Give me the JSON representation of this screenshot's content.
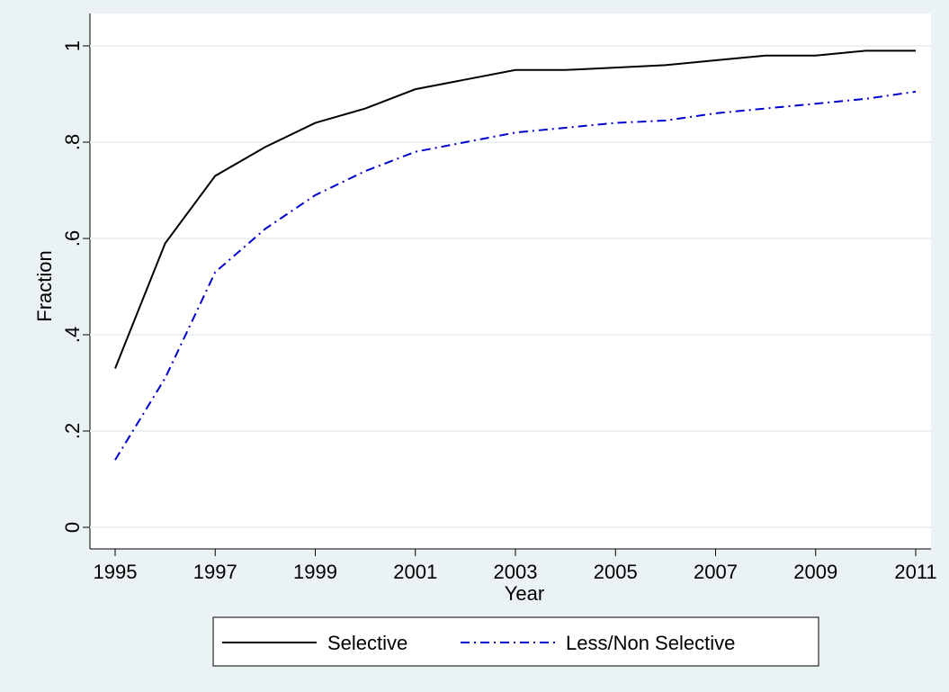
{
  "chart_data": {
    "type": "line",
    "x_label": "Year",
    "y_label": "Fraction",
    "x": [
      1995,
      1996,
      1997,
      1998,
      1999,
      2000,
      2001,
      2002,
      2003,
      2004,
      2005,
      2006,
      2007,
      2008,
      2009,
      2010,
      2011
    ],
    "series": [
      {
        "name": "Selective",
        "color": "#000000",
        "dash": "solid",
        "values": [
          0.33,
          0.59,
          0.73,
          0.79,
          0.84,
          0.87,
          0.91,
          0.93,
          0.95,
          0.95,
          0.955,
          0.96,
          0.97,
          0.98,
          0.98,
          0.99,
          0.99
        ]
      },
      {
        "name": "Less/Non Selective",
        "color": "#0000cc",
        "dash": "dashdot",
        "values": [
          0.14,
          0.31,
          0.53,
          0.62,
          0.69,
          0.74,
          0.78,
          0.8,
          0.82,
          0.83,
          0.84,
          0.845,
          0.86,
          0.87,
          0.88,
          0.89,
          0.905
        ]
      }
    ],
    "xlim": [
      1995,
      2011
    ],
    "xticks": [
      1995,
      1997,
      1999,
      2001,
      2003,
      2005,
      2007,
      2009,
      2011
    ],
    "ylim": [
      0,
      1
    ],
    "yticks": [
      0,
      {
        "value": 0.2,
        "label": ".2"
      },
      {
        "value": 0.4,
        "label": ".4"
      },
      {
        "value": 0.6,
        "label": ".6"
      },
      {
        "value": 0.8,
        "label": ".8"
      },
      1
    ],
    "grid": true,
    "legend": "bottom"
  }
}
